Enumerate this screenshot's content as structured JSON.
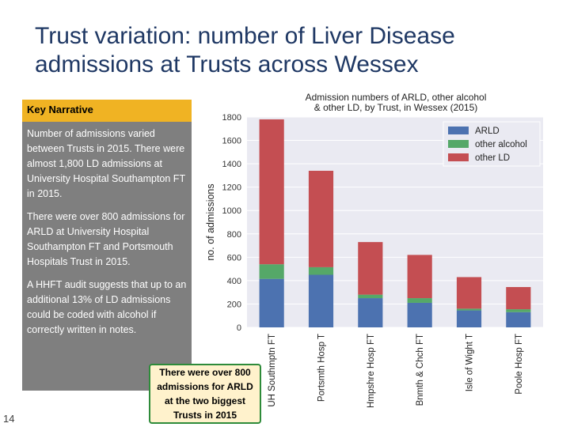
{
  "slide": {
    "title": "Trust variation: number of Liver Disease admissions at Trusts across Wessex",
    "page_number": "14"
  },
  "narrative": {
    "header": "Key Narrative",
    "paragraphs": [
      "Number of admissions varied between Trusts in 2015. There were almost 1,800 LD admissions at University Hospital Southampton FT in 2015.",
      "There were over 800 admissions for ARLD at University Hospital Southampton FT and Portsmouth Hospitals Trust in 2015.",
      "A HHFT audit suggests that up to an additional 13% of LD admissions could be coded with alcohol if correctly written in notes."
    ]
  },
  "callout": {
    "text": "There were over 800 admissions for ARLD at the two biggest Trusts in 2015"
  },
  "colors": {
    "arld": "#4c72b0",
    "other_alcohol": "#55a868",
    "other_ld": "#c44e52",
    "plot_bg": "#eaeaf2"
  },
  "chart_data": {
    "type": "bar",
    "stacked": true,
    "title": "Admission numbers of ARLD, other alcohol & other LD, by Trust, in Wessex (2015)",
    "ylabel": "no. of admissions",
    "xlabel": "",
    "ylim": [
      0,
      1800
    ],
    "yticks": [
      0,
      200,
      400,
      600,
      800,
      1000,
      1200,
      1400,
      1600,
      1800
    ],
    "grid": true,
    "legend_position": "top-right",
    "categories": [
      "UH Southmptn FT",
      "Portsmth Hosp T",
      "Hmpshre Hosp FT",
      "Bnmth & Chch FT",
      "Isle of Wight T",
      "Poole Hosp FT"
    ],
    "series": [
      {
        "name": "ARLD",
        "values": [
          415,
          450,
          250,
          210,
          145,
          130
        ]
      },
      {
        "name": "other alcohol",
        "values": [
          125,
          65,
          30,
          40,
          15,
          25
        ]
      },
      {
        "name": "other LD",
        "values": [
          1240,
          825,
          450,
          370,
          270,
          190
        ]
      }
    ]
  }
}
